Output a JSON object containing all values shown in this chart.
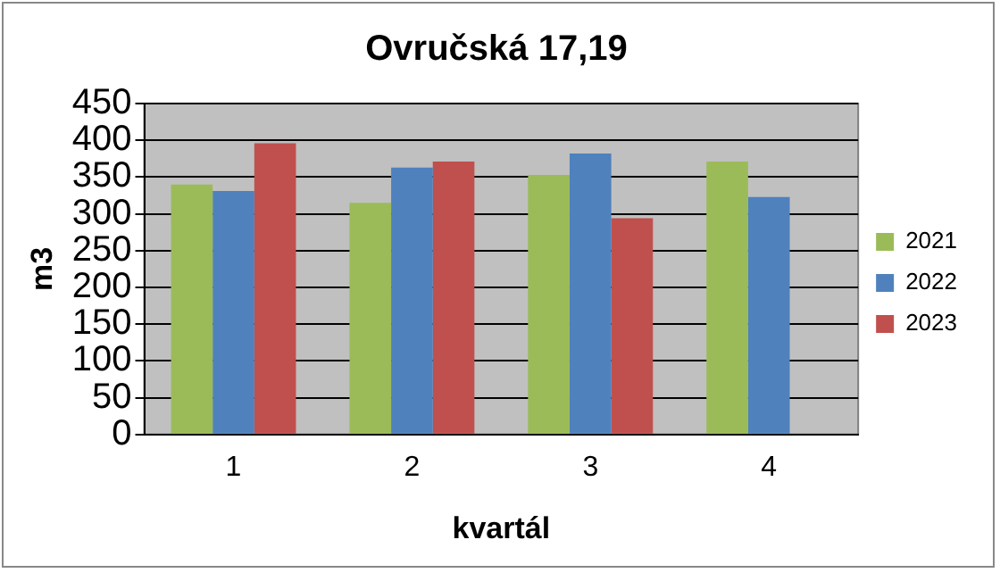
{
  "chart_data": {
    "type": "bar",
    "title": "Ovručská 17,19",
    "xlabel": "kvartál",
    "ylabel": "m3",
    "categories": [
      "1",
      "2",
      "3",
      "4"
    ],
    "series": [
      {
        "name": "2021",
        "color": "#9bbb59",
        "values": [
          340,
          315,
          353,
          371
        ]
      },
      {
        "name": "2022",
        "color": "#4f81bd",
        "values": [
          331,
          363,
          382,
          323
        ]
      },
      {
        "name": "2023",
        "color": "#c0504d",
        "values": [
          396,
          371,
          294,
          null
        ]
      }
    ],
    "ylim": [
      0,
      450
    ],
    "yticks": [
      0,
      50,
      100,
      150,
      200,
      250,
      300,
      350,
      400,
      450
    ],
    "grid": "y",
    "legend": "right"
  }
}
